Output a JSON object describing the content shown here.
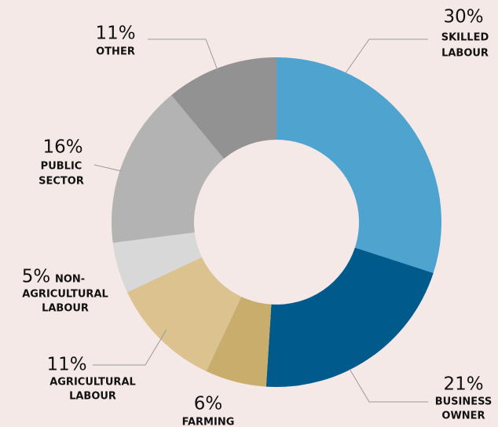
{
  "chart_data": {
    "type": "donut",
    "categories": [
      [
        "SKILLED",
        "LABOUR"
      ],
      [
        "BUSINESS",
        "OWNER"
      ],
      [
        "FARMING"
      ],
      [
        "AGRICULTURAL",
        "LABOUR"
      ],
      [
        "NON-",
        "AGRICULTURAL",
        "LABOUR"
      ],
      [
        "PUBLIC",
        "SECTOR"
      ],
      [
        "OTHER"
      ]
    ],
    "values": [
      30,
      21,
      6,
      11,
      5,
      16,
      11
    ],
    "value_labels": [
      "30%",
      "21%",
      "6%",
      "11%",
      "5%",
      "16%",
      "11%"
    ],
    "colors": [
      "#4fa3cf",
      "#005a8c",
      "#c9ad6d",
      "#dbc28f",
      "#d8d8d8",
      "#b3b3b3",
      "#929292"
    ]
  }
}
